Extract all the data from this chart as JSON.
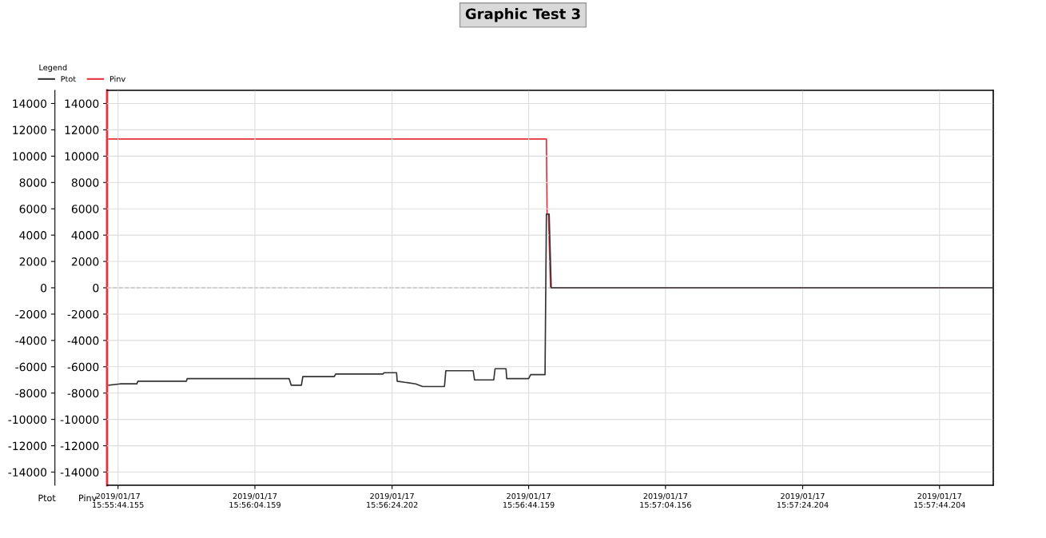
{
  "chart_data": {
    "type": "line",
    "title": "Graphic Test 3",
    "legend_title": "Legend",
    "ylabel": "Ptot",
    "y2label": "Pinv",
    "xlim": [
      "2019-01-17T15:55:42.555",
      "2019-01-17T15:57:52.055"
    ],
    "xticks": [
      {
        "value": "2019-01-17T15:55:44.155",
        "label": "2019/01/17\n15:55:44.155"
      },
      {
        "value": "2019-01-17T15:56:04.159",
        "label": "2019/01/17\n15:56:04.159"
      },
      {
        "value": "2019-01-17T15:56:24.202",
        "label": "2019/01/17\n15:56:24.202"
      },
      {
        "value": "2019-01-17T15:56:44.159",
        "label": "2019/01/17\n15:56:44.159"
      },
      {
        "value": "2019-01-17T15:57:04.156",
        "label": "2019/01/17\n15:57:04.156"
      },
      {
        "value": "2019-01-17T15:57:24.204",
        "label": "2019/01/17\n15:57:24.204"
      },
      {
        "value": "2019-01-17T15:57:44.204",
        "label": "2019/01/17\n15:57:44.204"
      }
    ],
    "ylim": [
      -15000,
      15000
    ],
    "yticks": [
      -14000,
      -12000,
      -10000,
      -8000,
      -6000,
      -4000,
      -2000,
      0,
      2000,
      4000,
      6000,
      8000,
      10000,
      12000,
      14000
    ],
    "y2lim": [
      -15000,
      15000
    ],
    "y2ticks": [
      -14000,
      -12000,
      -10000,
      -8000,
      -6000,
      -4000,
      -2000,
      0,
      2000,
      4000,
      6000,
      8000,
      10000,
      12000,
      14000
    ],
    "grid": true,
    "legend": "top left",
    "marker": "none",
    "line_style": "solid",
    "ref_lines": [
      {
        "axis": "y",
        "value": 0,
        "color": "#b0b0b0",
        "line_style": "dashed"
      }
    ],
    "series": [
      {
        "name": "Ptot",
        "color": "#333333",
        "x": [
          "2019-01-17T15:55:42.825",
          "2019-01-17T15:55:44.455",
          "2019-01-17T15:55:46.905",
          "2019-01-17T15:55:47.055",
          "2019-01-17T15:55:54.155",
          "2019-01-17T15:55:54.255",
          "2019-01-17T15:56:09.155",
          "2019-01-17T15:56:09.455",
          "2019-01-17T15:56:10.955",
          "2019-01-17T15:56:11.155",
          "2019-01-17T15:56:15.755",
          "2019-01-17T15:56:15.955",
          "2019-01-17T15:56:22.855",
          "2019-01-17T15:56:23.055",
          "2019-01-17T15:56:24.855",
          "2019-01-17T15:56:24.955",
          "2019-01-17T15:56:27.655",
          "2019-01-17T15:56:28.655",
          "2019-01-17T15:56:31.855",
          "2019-01-17T15:56:32.055",
          "2019-01-17T15:56:36.055",
          "2019-01-17T15:56:36.255",
          "2019-01-17T15:56:39.055",
          "2019-01-17T15:56:39.255",
          "2019-01-17T15:56:40.855",
          "2019-01-17T15:56:40.955",
          "2019-01-17T15:56:44.155",
          "2019-01-17T15:56:44.455",
          "2019-01-17T15:56:46.555",
          "2019-01-17T15:56:46.755",
          "2019-01-17T15:56:47.155",
          "2019-01-17T15:56:47.455",
          "2019-01-17T15:57:51.955"
        ],
        "values": [
          -7400,
          -7300,
          -7300,
          -7100,
          -7100,
          -6900,
          -6900,
          -7400,
          -7400,
          -6750,
          -6750,
          -6550,
          -6550,
          -6450,
          -6450,
          -7100,
          -7300,
          -7500,
          -7500,
          -6300,
          -6300,
          -7000,
          -7000,
          -6150,
          -6150,
          -6900,
          -6900,
          -6600,
          -6600,
          5600,
          5600,
          0,
          0
        ]
      },
      {
        "name": "Pinv",
        "color": "#e8303a",
        "axis": "y2",
        "x": [
          "2019-01-17T15:55:42.825",
          "2019-01-17T15:56:46.755",
          "2019-01-17T15:56:46.855",
          "2019-01-17T15:56:47.055",
          "2019-01-17T15:56:47.355",
          "2019-01-17T15:57:51.955"
        ],
        "values": [
          11300,
          11300,
          5600,
          5600,
          0,
          0
        ]
      }
    ]
  }
}
